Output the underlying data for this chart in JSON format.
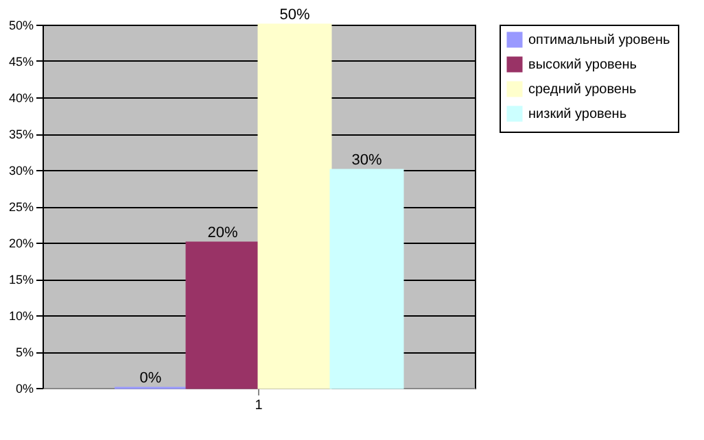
{
  "chart_data": {
    "type": "bar",
    "categories": [
      "1"
    ],
    "series": [
      {
        "name": "оптимальный уровень",
        "color": "#9999ff",
        "values": [
          0
        ],
        "value_labels": [
          "0%"
        ]
      },
      {
        "name": "высокий уровень",
        "color": "#993366",
        "values": [
          20
        ],
        "value_labels": [
          "20%"
        ]
      },
      {
        "name": "средний уровень",
        "color": "#ffffcc",
        "values": [
          50
        ],
        "value_labels": [
          "50%"
        ]
      },
      {
        "name": "низкий уровень",
        "color": "#ccffff",
        "values": [
          30
        ],
        "value_labels": [
          "30%"
        ]
      }
    ],
    "ylim": [
      0,
      50
    ],
    "yticks": [
      {
        "value": 0,
        "label": "0%"
      },
      {
        "value": 5,
        "label": "5%"
      },
      {
        "value": 10,
        "label": "10%"
      },
      {
        "value": 15,
        "label": "15%"
      },
      {
        "value": 20,
        "label": "20%"
      },
      {
        "value": 25,
        "label": "25%"
      },
      {
        "value": 30,
        "label": "30%"
      },
      {
        "value": 35,
        "label": "35%"
      },
      {
        "value": 40,
        "label": "40%"
      },
      {
        "value": 45,
        "label": "45%"
      },
      {
        "value": 50,
        "label": "50%"
      }
    ],
    "grid": "y",
    "legend": "right"
  }
}
